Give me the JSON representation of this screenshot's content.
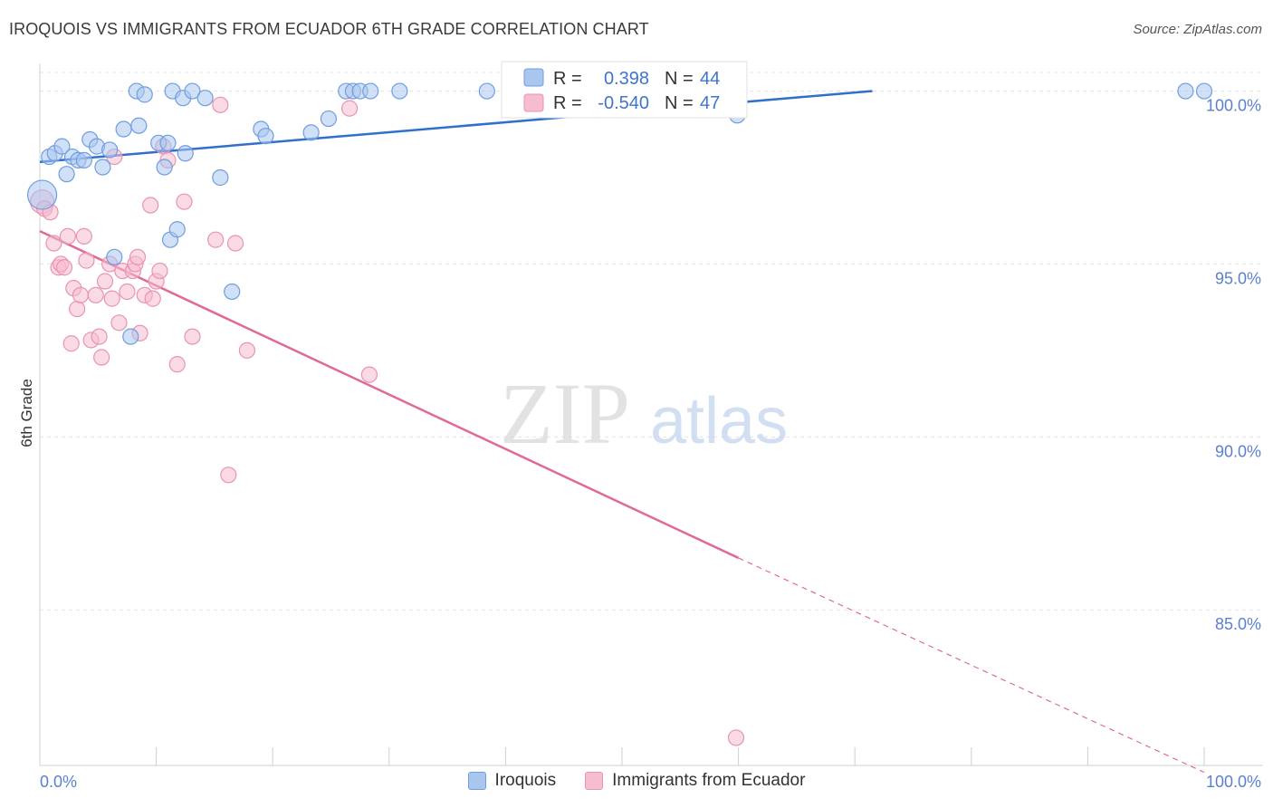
{
  "header": {
    "title": "IROQUOIS VS IMMIGRANTS FROM ECUADOR 6TH GRADE CORRELATION CHART",
    "source": "Source: ZipAtlas.com"
  },
  "watermark": {
    "zip": "ZIP",
    "atlas": "atlas"
  },
  "colors": {
    "blue_fill": "#a9c6ef",
    "blue_stroke": "#6f9de0",
    "blue_line": "#2f6fce",
    "pink_fill": "#f6bcd0",
    "pink_stroke": "#e993b1",
    "pink_line": "#e0699a",
    "tick_text": "#5b7fd1",
    "grid": "#e3e3e3"
  },
  "legend_box": {
    "rows": [
      {
        "r_label": "R =",
        "r_value": "0.398",
        "n_label": "N =",
        "n_value": "44"
      },
      {
        "r_label": "R =",
        "r_value": "-0.540",
        "n_label": "N =",
        "n_value": "47"
      }
    ]
  },
  "bottom_legend": {
    "series1": "Iroquois",
    "series2": "Immigrants from Ecuador"
  },
  "chart_data": {
    "type": "scatter",
    "title": "IROQUOIS VS IMMIGRANTS FROM ECUADOR 6TH GRADE CORRELATION CHART",
    "xlabel": "",
    "ylabel": "6th Grade",
    "xlim": [
      0,
      100
    ],
    "ylim": [
      80.5,
      100.8
    ],
    "x_tick_labels": [
      "0.0%",
      "100.0%"
    ],
    "y_ticks": [
      85,
      90,
      95,
      100
    ],
    "y_tick_labels": [
      "85.0%",
      "90.0%",
      "95.0%",
      "100.0%"
    ],
    "series": [
      {
        "name": "Iroquois",
        "r": 0.398,
        "n": 44,
        "trend": {
          "x0": 0,
          "y0": 97.95,
          "x1": 71.5,
          "y1": 100.0
        },
        "points": [
          [
            0.2,
            97.0
          ],
          [
            0.8,
            98.1
          ],
          [
            1.3,
            98.2
          ],
          [
            1.9,
            98.4
          ],
          [
            2.3,
            97.6
          ],
          [
            2.8,
            98.1
          ],
          [
            3.3,
            98.0
          ],
          [
            3.8,
            98.0
          ],
          [
            4.3,
            98.6
          ],
          [
            4.9,
            98.4
          ],
          [
            5.4,
            97.8
          ],
          [
            6.0,
            98.3
          ],
          [
            6.4,
            95.2
          ],
          [
            7.2,
            98.9
          ],
          [
            7.8,
            92.9
          ],
          [
            8.3,
            100.0
          ],
          [
            8.5,
            99.0
          ],
          [
            9.0,
            99.9
          ],
          [
            10.2,
            98.5
          ],
          [
            10.7,
            97.8
          ],
          [
            11.0,
            98.5
          ],
          [
            11.2,
            95.7
          ],
          [
            11.4,
            100.0
          ],
          [
            11.8,
            96.0
          ],
          [
            12.3,
            99.8
          ],
          [
            12.5,
            98.2
          ],
          [
            13.1,
            100.0
          ],
          [
            14.2,
            99.8
          ],
          [
            15.5,
            97.5
          ],
          [
            16.5,
            94.2
          ],
          [
            19.0,
            98.9
          ],
          [
            19.4,
            98.7
          ],
          [
            23.3,
            98.8
          ],
          [
            24.8,
            99.2
          ],
          [
            26.3,
            100.0
          ],
          [
            26.9,
            100.0
          ],
          [
            27.5,
            100.0
          ],
          [
            28.4,
            100.0
          ],
          [
            30.9,
            100.0
          ],
          [
            38.4,
            100.0
          ],
          [
            43.4,
            100.0
          ],
          [
            59.9,
            99.3
          ],
          [
            98.4,
            100.0
          ],
          [
            100.0,
            100.0
          ]
        ]
      },
      {
        "name": "Immigrants from Ecuador",
        "r": -0.54,
        "n": 47,
        "trend": {
          "x0": 0,
          "y0": 95.95,
          "x1": 60.0,
          "y1": 86.5,
          "dashed_to_x": 100,
          "dashed_to_y": 80.3
        },
        "points": [
          [
            0.2,
            96.8
          ],
          [
            0.4,
            96.6
          ],
          [
            0.9,
            96.5
          ],
          [
            1.2,
            95.6
          ],
          [
            1.6,
            94.9
          ],
          [
            1.8,
            95.0
          ],
          [
            2.1,
            94.9
          ],
          [
            2.4,
            95.8
          ],
          [
            2.7,
            92.7
          ],
          [
            2.9,
            94.3
          ],
          [
            3.2,
            93.7
          ],
          [
            3.5,
            94.1
          ],
          [
            3.8,
            95.8
          ],
          [
            4.0,
            95.1
          ],
          [
            4.4,
            92.8
          ],
          [
            4.8,
            94.1
          ],
          [
            5.1,
            92.9
          ],
          [
            5.3,
            92.3
          ],
          [
            5.6,
            94.5
          ],
          [
            6.0,
            95.0
          ],
          [
            6.2,
            94.0
          ],
          [
            6.4,
            98.1
          ],
          [
            6.8,
            93.3
          ],
          [
            7.1,
            94.8
          ],
          [
            7.5,
            94.2
          ],
          [
            8.0,
            94.8
          ],
          [
            8.2,
            95.0
          ],
          [
            8.4,
            95.2
          ],
          [
            8.6,
            93.0
          ],
          [
            9.0,
            94.1
          ],
          [
            9.5,
            96.7
          ],
          [
            9.7,
            94.0
          ],
          [
            10.0,
            94.5
          ],
          [
            10.3,
            94.8
          ],
          [
            10.6,
            98.4
          ],
          [
            11.0,
            98.0
          ],
          [
            11.8,
            92.1
          ],
          [
            12.4,
            96.8
          ],
          [
            13.1,
            92.9
          ],
          [
            15.1,
            95.7
          ],
          [
            15.5,
            99.6
          ],
          [
            16.2,
            88.9
          ],
          [
            16.8,
            95.6
          ],
          [
            17.8,
            92.5
          ],
          [
            26.6,
            99.5
          ],
          [
            28.3,
            91.8
          ],
          [
            59.8,
            81.3
          ]
        ]
      }
    ]
  }
}
